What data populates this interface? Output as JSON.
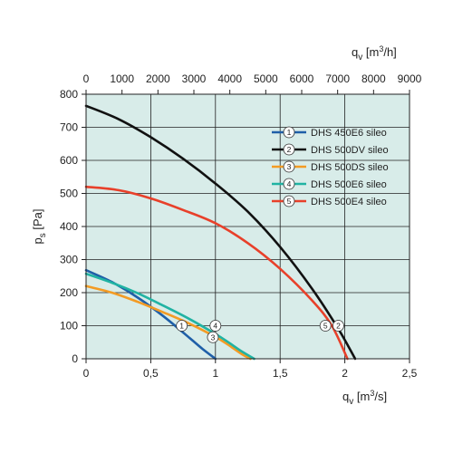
{
  "chart_data": {
    "type": "line",
    "x_bottom": {
      "label": "q",
      "label_sub": "v",
      "unit_open": "[m",
      "unit_sup": "3",
      "unit_close": "/s]",
      "range": [
        0,
        2.5
      ],
      "ticks": [
        0,
        0.5,
        1,
        1.5,
        2,
        2.5
      ],
      "tick_labels": [
        "0",
        "0,5",
        "1",
        "1,5",
        "2",
        "2,5"
      ]
    },
    "x_top": {
      "label": "q",
      "label_sub": "v",
      "unit_open": "[m",
      "unit_sup": "3",
      "unit_close": "/h]",
      "range": [
        0,
        9000
      ],
      "ticks": [
        0,
        1000,
        2000,
        3000,
        4000,
        5000,
        6000,
        7000,
        8000,
        9000
      ],
      "tick_labels": [
        "0",
        "1000",
        "2000",
        "3000",
        "4000",
        "5000",
        "6000",
        "7000",
        "8000",
        "9000"
      ]
    },
    "y": {
      "label": "p",
      "label_sub": "s",
      "unit": "[Pa]",
      "range": [
        0,
        800
      ],
      "ticks": [
        0,
        100,
        200,
        300,
        400,
        500,
        600,
        700,
        800
      ],
      "tick_labels": [
        "0",
        "100",
        "200",
        "300",
        "400",
        "500",
        "600",
        "700",
        "800"
      ]
    },
    "grid": true,
    "legend_position": "top-right",
    "series": [
      {
        "id": "1",
        "name": "DHS 450E6 sileo",
        "color": "#1f5fa8",
        "x": [
          0,
          0.2,
          0.4,
          0.6,
          0.8,
          0.9,
          1.0
        ],
        "y": [
          268,
          232,
          185,
          128,
          63,
          30,
          0
        ],
        "marker": {
          "label": "1",
          "x": 0.74,
          "y": 100
        }
      },
      {
        "id": "2",
        "name": "DHS 500DV sileo",
        "color": "#111111",
        "x": [
          0,
          0.25,
          0.5,
          0.75,
          1.0,
          1.25,
          1.5,
          1.75,
          1.95,
          2.08
        ],
        "y": [
          765,
          725,
          670,
          605,
          530,
          445,
          338,
          210,
          90,
          0
        ],
        "marker": {
          "label": "2",
          "x": 1.95,
          "y": 100
        }
      },
      {
        "id": "3",
        "name": "DHS 500DS sileo",
        "color": "#f39b24",
        "x": [
          0,
          0.2,
          0.4,
          0.6,
          0.8,
          1.0,
          1.1,
          1.2,
          1.27
        ],
        "y": [
          220,
          200,
          172,
          140,
          106,
          66,
          42,
          15,
          0
        ],
        "marker": {
          "label": "3",
          "x": 0.98,
          "y": 65
        }
      },
      {
        "id": "4",
        "name": "DHS 500E6 sileo",
        "color": "#21b3a3",
        "x": [
          0,
          0.2,
          0.4,
          0.6,
          0.8,
          1.0,
          1.1,
          1.2,
          1.3
        ],
        "y": [
          257,
          230,
          198,
          160,
          120,
          75,
          50,
          23,
          0
        ],
        "marker": {
          "label": "4",
          "x": 1.0,
          "y": 100
        }
      },
      {
        "id": "5",
        "name": "DHS 500E4 sileo",
        "color": "#e8402a",
        "x": [
          0,
          0.25,
          0.5,
          0.75,
          1.0,
          1.25,
          1.5,
          1.75,
          1.9,
          2.02
        ],
        "y": [
          520,
          510,
          485,
          450,
          410,
          350,
          272,
          175,
          100,
          0
        ],
        "marker": {
          "label": "5",
          "x": 1.85,
          "y": 100
        }
      }
    ]
  }
}
